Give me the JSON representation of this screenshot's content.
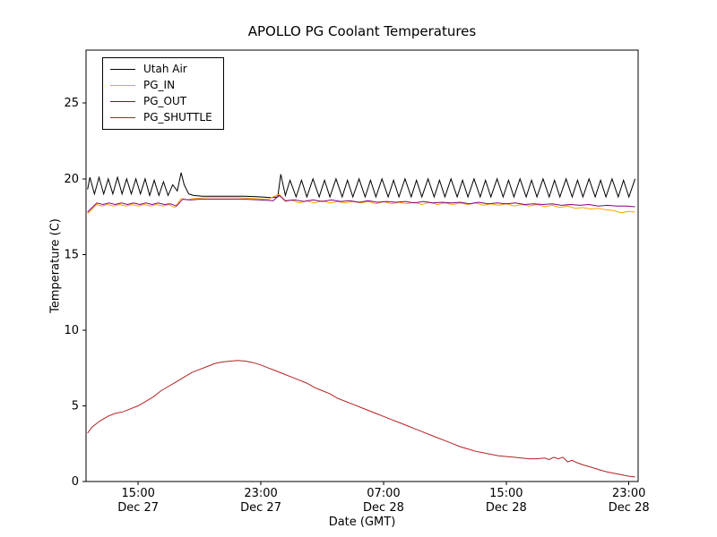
{
  "chart_data": {
    "type": "line",
    "title": "APOLLO PG Coolant Temperatures",
    "xlabel": "Date (GMT)",
    "ylabel": "Temperature (C)",
    "background_color": "#ffffff",
    "frame_color": "#000000",
    "grid": false,
    "legend_position": "upper left",
    "ylim": [
      0,
      28.5
    ],
    "yticks": [
      0,
      5,
      10,
      15,
      20,
      25
    ],
    "xlim_hours": [
      11.6,
      47.6
    ],
    "xticks": [
      {
        "hours": 15,
        "time": "15:00",
        "date": "Dec 27"
      },
      {
        "hours": 23,
        "time": "23:00",
        "date": "Dec 27"
      },
      {
        "hours": 31,
        "time": "07:00",
        "date": "Dec 28"
      },
      {
        "hours": 39,
        "time": "15:00",
        "date": "Dec 28"
      },
      {
        "hours": 47,
        "time": "23:00",
        "date": "Dec 28"
      }
    ],
    "series": [
      {
        "name": "Utah Air",
        "color": "#000000",
        "points": [
          [
            11.7,
            19.3
          ],
          [
            11.85,
            20.1
          ],
          [
            12.15,
            19.0
          ],
          [
            12.45,
            20.1
          ],
          [
            12.75,
            19.0
          ],
          [
            13.05,
            20.0
          ],
          [
            13.35,
            19.0
          ],
          [
            13.65,
            20.1
          ],
          [
            13.95,
            19.0
          ],
          [
            14.25,
            20.0
          ],
          [
            14.55,
            19.0
          ],
          [
            14.85,
            20.0
          ],
          [
            15.15,
            19.0
          ],
          [
            15.45,
            20.0
          ],
          [
            15.75,
            18.9
          ],
          [
            16.05,
            19.9
          ],
          [
            16.35,
            18.9
          ],
          [
            16.65,
            19.8
          ],
          [
            16.95,
            18.9
          ],
          [
            17.25,
            19.6
          ],
          [
            17.55,
            19.2
          ],
          [
            17.8,
            20.4
          ],
          [
            18.0,
            19.6
          ],
          [
            18.3,
            19.0
          ],
          [
            18.6,
            18.9
          ],
          [
            19.2,
            18.85
          ],
          [
            20.0,
            18.85
          ],
          [
            21.0,
            18.85
          ],
          [
            22.0,
            18.85
          ],
          [
            23.0,
            18.8
          ],
          [
            23.7,
            18.75
          ],
          [
            24.1,
            18.8
          ],
          [
            24.3,
            20.3
          ],
          [
            24.6,
            18.9
          ],
          [
            24.9,
            19.9
          ],
          [
            25.3,
            18.8
          ],
          [
            25.65,
            19.9
          ],
          [
            26.0,
            18.8
          ],
          [
            26.4,
            20.0
          ],
          [
            26.8,
            18.8
          ],
          [
            27.15,
            19.9
          ],
          [
            27.5,
            18.8
          ],
          [
            27.9,
            20.0
          ],
          [
            28.3,
            18.8
          ],
          [
            28.65,
            19.9
          ],
          [
            29.0,
            18.8
          ],
          [
            29.4,
            20.0
          ],
          [
            29.8,
            18.8
          ],
          [
            30.15,
            19.9
          ],
          [
            30.5,
            18.8
          ],
          [
            30.9,
            20.0
          ],
          [
            31.3,
            18.8
          ],
          [
            31.65,
            19.9
          ],
          [
            32.0,
            18.8
          ],
          [
            32.4,
            20.0
          ],
          [
            32.8,
            18.8
          ],
          [
            33.15,
            19.9
          ],
          [
            33.5,
            18.8
          ],
          [
            33.9,
            20.0
          ],
          [
            34.3,
            18.8
          ],
          [
            34.65,
            19.9
          ],
          [
            35.0,
            18.8
          ],
          [
            35.4,
            20.0
          ],
          [
            35.8,
            18.8
          ],
          [
            36.15,
            19.9
          ],
          [
            36.5,
            18.8
          ],
          [
            36.9,
            20.0
          ],
          [
            37.3,
            18.8
          ],
          [
            37.65,
            19.9
          ],
          [
            38.0,
            18.8
          ],
          [
            38.4,
            20.0
          ],
          [
            38.8,
            18.8
          ],
          [
            39.15,
            19.9
          ],
          [
            39.5,
            18.8
          ],
          [
            39.9,
            20.0
          ],
          [
            40.3,
            18.8
          ],
          [
            40.65,
            19.9
          ],
          [
            41.0,
            18.8
          ],
          [
            41.4,
            20.0
          ],
          [
            41.8,
            18.8
          ],
          [
            42.15,
            19.9
          ],
          [
            42.5,
            18.8
          ],
          [
            42.9,
            20.0
          ],
          [
            43.3,
            18.8
          ],
          [
            43.65,
            19.9
          ],
          [
            44.0,
            18.8
          ],
          [
            44.4,
            20.0
          ],
          [
            44.8,
            18.8
          ],
          [
            45.15,
            19.9
          ],
          [
            45.5,
            18.8
          ],
          [
            45.9,
            20.0
          ],
          [
            46.3,
            18.8
          ],
          [
            46.65,
            19.9
          ],
          [
            47.0,
            18.8
          ],
          [
            47.4,
            20.0
          ]
        ]
      },
      {
        "name": "PG_IN",
        "color": "#ffa500",
        "points": [
          [
            11.7,
            17.7
          ],
          [
            12.0,
            18.0
          ],
          [
            12.3,
            18.3
          ],
          [
            12.6,
            18.2
          ],
          [
            13.0,
            18.3
          ],
          [
            13.4,
            18.2
          ],
          [
            13.8,
            18.3
          ],
          [
            14.2,
            18.2
          ],
          [
            14.6,
            18.3
          ],
          [
            15.0,
            18.2
          ],
          [
            15.4,
            18.3
          ],
          [
            15.8,
            18.2
          ],
          [
            16.2,
            18.3
          ],
          [
            16.6,
            18.2
          ],
          [
            17.0,
            18.3
          ],
          [
            17.4,
            18.1
          ],
          [
            17.8,
            18.7
          ],
          [
            18.2,
            18.6
          ],
          [
            18.6,
            18.7
          ],
          [
            19.5,
            18.75
          ],
          [
            20.5,
            18.75
          ],
          [
            21.5,
            18.75
          ],
          [
            22.5,
            18.7
          ],
          [
            23.5,
            18.65
          ],
          [
            24.2,
            19.0
          ],
          [
            24.6,
            18.5
          ],
          [
            25.0,
            18.6
          ],
          [
            25.5,
            18.4
          ],
          [
            26.0,
            18.55
          ],
          [
            26.5,
            18.4
          ],
          [
            27.0,
            18.55
          ],
          [
            27.5,
            18.4
          ],
          [
            28.0,
            18.5
          ],
          [
            28.5,
            18.4
          ],
          [
            29.0,
            18.5
          ],
          [
            29.5,
            18.4
          ],
          [
            30.0,
            18.5
          ],
          [
            30.5,
            18.35
          ],
          [
            31.0,
            18.5
          ],
          [
            31.5,
            18.35
          ],
          [
            32.0,
            18.45
          ],
          [
            32.5,
            18.35
          ],
          [
            33.0,
            18.45
          ],
          [
            33.5,
            18.3
          ],
          [
            34.0,
            18.45
          ],
          [
            34.5,
            18.3
          ],
          [
            35.0,
            18.4
          ],
          [
            35.5,
            18.3
          ],
          [
            36.0,
            18.4
          ],
          [
            36.5,
            18.3
          ],
          [
            37.0,
            18.4
          ],
          [
            37.5,
            18.25
          ],
          [
            38.0,
            18.35
          ],
          [
            38.5,
            18.25
          ],
          [
            39.0,
            18.35
          ],
          [
            39.5,
            18.2
          ],
          [
            40.0,
            18.3
          ],
          [
            40.5,
            18.2
          ],
          [
            41.0,
            18.3
          ],
          [
            41.5,
            18.15
          ],
          [
            42.0,
            18.25
          ],
          [
            42.5,
            18.1
          ],
          [
            43.0,
            18.2
          ],
          [
            43.5,
            18.05
          ],
          [
            44.0,
            18.1
          ],
          [
            44.5,
            18.0
          ],
          [
            45.0,
            18.05
          ],
          [
            45.5,
            17.95
          ],
          [
            46.0,
            17.9
          ],
          [
            46.5,
            17.75
          ],
          [
            47.0,
            17.85
          ],
          [
            47.4,
            17.8
          ]
        ]
      },
      {
        "name": "PG_OUT",
        "color": "#800080",
        "points": [
          [
            11.7,
            17.8
          ],
          [
            12.0,
            18.1
          ],
          [
            12.3,
            18.4
          ],
          [
            12.7,
            18.3
          ],
          [
            13.1,
            18.4
          ],
          [
            13.5,
            18.3
          ],
          [
            13.9,
            18.4
          ],
          [
            14.3,
            18.3
          ],
          [
            14.7,
            18.4
          ],
          [
            15.1,
            18.3
          ],
          [
            15.5,
            18.4
          ],
          [
            15.9,
            18.3
          ],
          [
            16.3,
            18.4
          ],
          [
            16.7,
            18.3
          ],
          [
            17.1,
            18.35
          ],
          [
            17.5,
            18.2
          ],
          [
            17.9,
            18.65
          ],
          [
            18.4,
            18.6
          ],
          [
            19.0,
            18.65
          ],
          [
            20.0,
            18.65
          ],
          [
            21.0,
            18.65
          ],
          [
            22.0,
            18.65
          ],
          [
            23.0,
            18.6
          ],
          [
            23.8,
            18.55
          ],
          [
            24.2,
            18.9
          ],
          [
            24.6,
            18.55
          ],
          [
            25.2,
            18.6
          ],
          [
            25.8,
            18.5
          ],
          [
            26.4,
            18.6
          ],
          [
            27.0,
            18.5
          ],
          [
            27.6,
            18.6
          ],
          [
            28.2,
            18.5
          ],
          [
            28.8,
            18.55
          ],
          [
            29.4,
            18.45
          ],
          [
            30.0,
            18.55
          ],
          [
            30.6,
            18.45
          ],
          [
            31.2,
            18.5
          ],
          [
            31.8,
            18.45
          ],
          [
            32.4,
            18.5
          ],
          [
            33.0,
            18.4
          ],
          [
            33.6,
            18.5
          ],
          [
            34.2,
            18.4
          ],
          [
            34.8,
            18.45
          ],
          [
            35.4,
            18.4
          ],
          [
            36.0,
            18.45
          ],
          [
            36.6,
            18.35
          ],
          [
            37.2,
            18.45
          ],
          [
            37.8,
            18.35
          ],
          [
            38.4,
            18.4
          ],
          [
            39.0,
            18.35
          ],
          [
            39.6,
            18.4
          ],
          [
            40.2,
            18.3
          ],
          [
            40.8,
            18.35
          ],
          [
            41.4,
            18.3
          ],
          [
            42.0,
            18.35
          ],
          [
            42.6,
            18.25
          ],
          [
            43.2,
            18.3
          ],
          [
            43.8,
            18.25
          ],
          [
            44.4,
            18.3
          ],
          [
            45.0,
            18.2
          ],
          [
            45.6,
            18.25
          ],
          [
            46.2,
            18.2
          ],
          [
            46.8,
            18.2
          ],
          [
            47.4,
            18.15
          ]
        ]
      },
      {
        "name": "PG_SHUTTLE",
        "color": "#b22222",
        "points": [
          [
            11.7,
            3.2
          ],
          [
            12.0,
            3.6
          ],
          [
            12.5,
            4.0
          ],
          [
            13.0,
            4.3
          ],
          [
            13.5,
            4.5
          ],
          [
            14.0,
            4.6
          ],
          [
            14.5,
            4.8
          ],
          [
            15.0,
            5.0
          ],
          [
            15.5,
            5.3
          ],
          [
            16.0,
            5.6
          ],
          [
            16.5,
            6.0
          ],
          [
            17.0,
            6.3
          ],
          [
            17.5,
            6.6
          ],
          [
            18.0,
            6.9
          ],
          [
            18.5,
            7.2
          ],
          [
            19.0,
            7.4
          ],
          [
            19.5,
            7.6
          ],
          [
            20.0,
            7.8
          ],
          [
            20.5,
            7.9
          ],
          [
            21.0,
            7.95
          ],
          [
            21.5,
            8.0
          ],
          [
            22.0,
            7.95
          ],
          [
            22.5,
            7.85
          ],
          [
            23.0,
            7.7
          ],
          [
            23.5,
            7.5
          ],
          [
            24.0,
            7.3
          ],
          [
            24.5,
            7.1
          ],
          [
            25.0,
            6.9
          ],
          [
            25.5,
            6.7
          ],
          [
            26.0,
            6.5
          ],
          [
            26.5,
            6.2
          ],
          [
            27.0,
            6.0
          ],
          [
            27.5,
            5.8
          ],
          [
            28.0,
            5.5
          ],
          [
            28.5,
            5.3
          ],
          [
            29.0,
            5.1
          ],
          [
            29.5,
            4.9
          ],
          [
            30.0,
            4.7
          ],
          [
            30.5,
            4.5
          ],
          [
            31.0,
            4.3
          ],
          [
            31.5,
            4.1
          ],
          [
            32.0,
            3.9
          ],
          [
            32.5,
            3.7
          ],
          [
            33.0,
            3.5
          ],
          [
            33.5,
            3.3
          ],
          [
            34.0,
            3.1
          ],
          [
            34.5,
            2.9
          ],
          [
            35.0,
            2.7
          ],
          [
            35.5,
            2.5
          ],
          [
            36.0,
            2.3
          ],
          [
            36.5,
            2.15
          ],
          [
            37.0,
            2.0
          ],
          [
            37.5,
            1.9
          ],
          [
            38.0,
            1.8
          ],
          [
            38.5,
            1.7
          ],
          [
            39.0,
            1.65
          ],
          [
            39.5,
            1.6
          ],
          [
            40.0,
            1.55
          ],
          [
            40.5,
            1.5
          ],
          [
            41.0,
            1.5
          ],
          [
            41.5,
            1.55
          ],
          [
            41.8,
            1.45
          ],
          [
            42.1,
            1.6
          ],
          [
            42.4,
            1.5
          ],
          [
            42.7,
            1.6
          ],
          [
            43.0,
            1.3
          ],
          [
            43.3,
            1.4
          ],
          [
            43.6,
            1.25
          ],
          [
            44.0,
            1.1
          ],
          [
            44.5,
            0.95
          ],
          [
            45.0,
            0.8
          ],
          [
            45.5,
            0.65
          ],
          [
            46.0,
            0.55
          ],
          [
            46.5,
            0.45
          ],
          [
            47.0,
            0.35
          ],
          [
            47.4,
            0.3
          ]
        ]
      }
    ]
  }
}
